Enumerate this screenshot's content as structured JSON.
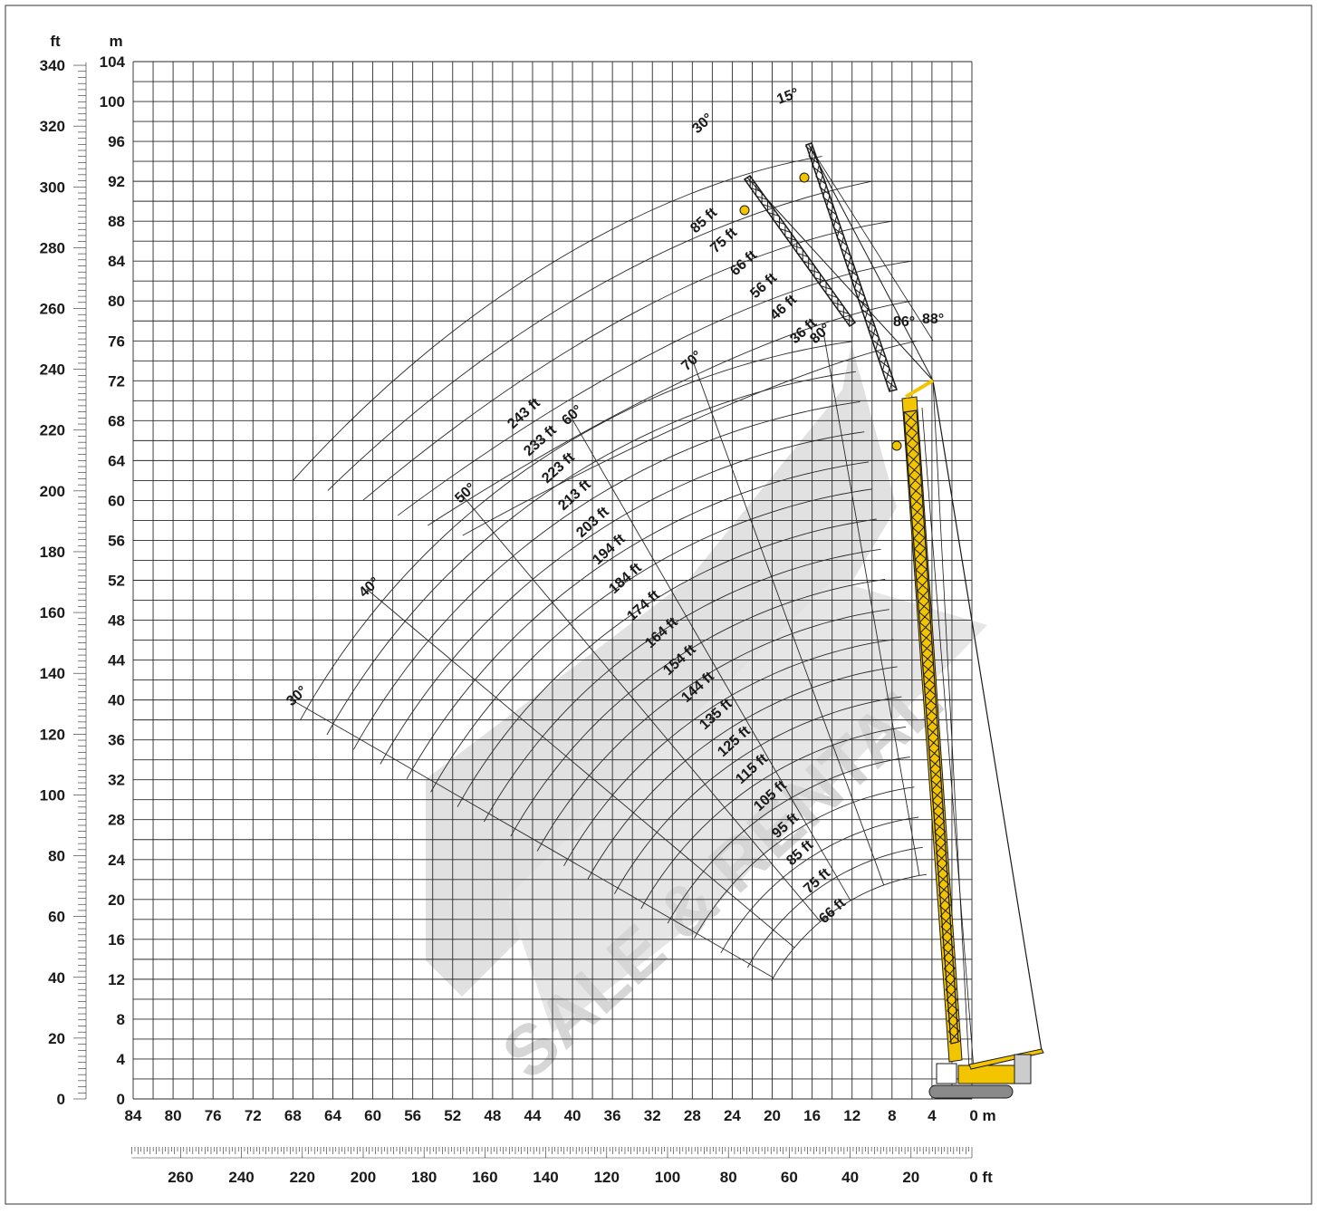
{
  "chart_data": {
    "type": "range_diagram",
    "title": "",
    "watermark": "SALE & RENTAL",
    "colors": {
      "crane": "#f2c500",
      "lattice": "#1a1a1a",
      "grid": "#2a2a2a",
      "watermark": "#d9d9d9"
    },
    "axes": {
      "x_m": {
        "unit": "m",
        "range": [
          84,
          0
        ],
        "ticks": [
          84,
          80,
          76,
          72,
          68,
          64,
          60,
          56,
          52,
          48,
          44,
          40,
          36,
          32,
          28,
          24,
          20,
          16,
          12,
          8,
          4,
          0
        ]
      },
      "x_ft": {
        "unit": "ft",
        "range": [
          275,
          0
        ],
        "ticks": [
          260,
          240,
          220,
          200,
          180,
          160,
          140,
          120,
          100,
          80,
          60,
          40,
          20,
          0
        ]
      },
      "y_m": {
        "unit": "m",
        "range": [
          0,
          104
        ],
        "ticks": [
          0,
          4,
          8,
          12,
          16,
          20,
          24,
          28,
          32,
          36,
          40,
          44,
          48,
          52,
          56,
          60,
          64,
          68,
          72,
          76,
          80,
          84,
          88,
          92,
          96,
          100,
          104
        ]
      },
      "y_ft": {
        "unit": "ft",
        "range": [
          0,
          340
        ],
        "ticks": [
          0,
          20,
          40,
          60,
          80,
          100,
          120,
          140,
          160,
          180,
          200,
          220,
          240,
          260,
          280,
          300,
          320,
          340
        ]
      },
      "labels": {
        "x_m": "0 m",
        "x_ft": "0 ft",
        "y_m": "m",
        "y_ft": "ft"
      },
      "grid": true
    },
    "main_boom_lengths": [
      "66 ft",
      "75 ft",
      "85 ft",
      "95 ft",
      "105 ft",
      "115 ft",
      "125 ft",
      "135 ft",
      "144 ft",
      "154 ft",
      "164 ft",
      "174 ft",
      "184 ft",
      "194 ft",
      "203 ft",
      "213 ft",
      "223 ft",
      "233 ft",
      "243 ft"
    ],
    "main_boom_angles": [
      "30°",
      "40°",
      "50°",
      "60°",
      "70°",
      "80°"
    ],
    "jib_lengths": [
      "36 ft",
      "46 ft",
      "56 ft",
      "66 ft",
      "75 ft",
      "85 ft"
    ],
    "jib_offsets": [
      "15°",
      "30°"
    ],
    "main_boom_positions": [
      "86°",
      "88°"
    ]
  }
}
